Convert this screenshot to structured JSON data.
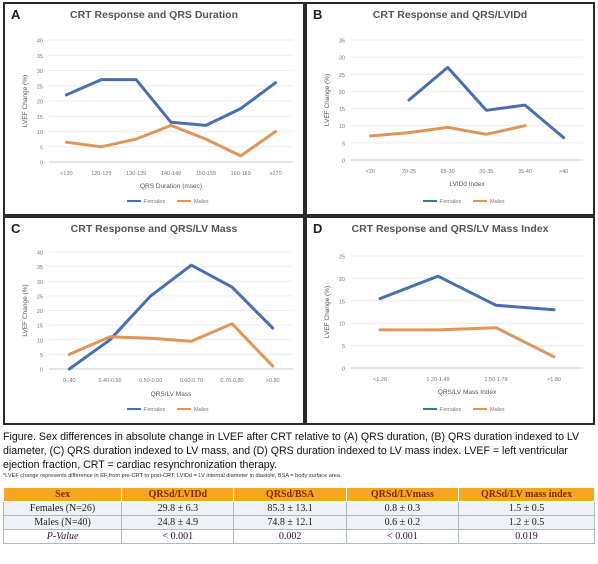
{
  "chart_data": [
    {
      "panel": "A",
      "type": "line",
      "title": "CRT Response and QRS Duration",
      "xlabel": "QRS Duration (msec)",
      "ylabel": "LVEF Change (%)",
      "ylim": [
        0,
        40
      ],
      "yticks": [
        0,
        5,
        10,
        15,
        20,
        25,
        30,
        35,
        40
      ],
      "categories": [
        "<120",
        "120-129",
        "130-139",
        "140-149",
        "150-159",
        "160-169",
        "≥170"
      ],
      "series": [
        {
          "name": "Females",
          "values": [
            22,
            27,
            27,
            13,
            12,
            17.5,
            26
          ]
        },
        {
          "name": "Males",
          "values": [
            6.5,
            5,
            7.5,
            12,
            7.5,
            2,
            10
          ]
        }
      ]
    },
    {
      "panel": "B",
      "type": "line",
      "title": "CRT Response and QRS/LVIDd",
      "xlabel": "LVIDd Index",
      "ylabel": "LVEF Change (%)",
      "ylim": [
        0,
        35
      ],
      "yticks": [
        0,
        5,
        10,
        15,
        20,
        25,
        30,
        35
      ],
      "categories": [
        "<20",
        "20-25",
        "25-30",
        "30-35",
        "35-40",
        ">40"
      ],
      "series": [
        {
          "name": "Females",
          "values": [
            null,
            17.5,
            27,
            14.5,
            16,
            6.5
          ]
        },
        {
          "name": "Males",
          "values": [
            7,
            8,
            9.5,
            7.5,
            10,
            null
          ]
        }
      ]
    },
    {
      "panel": "C",
      "type": "line",
      "title": "CRT Response and QRS/LV Mass",
      "xlabel": "QRS/LV Mass",
      "ylabel": "LVEF Change (%)",
      "ylim": [
        0,
        40
      ],
      "yticks": [
        0,
        5,
        10,
        15,
        20,
        25,
        30,
        35,
        40
      ],
      "categories": [
        "0-.40",
        "0.40-0.50",
        "0.50-0.60",
        "0.60-0.70",
        "0.70-0.80",
        ">0.80"
      ],
      "series": [
        {
          "name": "Females",
          "values": [
            0,
            10,
            25,
            35.5,
            28,
            14
          ]
        },
        {
          "name": "Males",
          "values": [
            5,
            11,
            10.5,
            9.5,
            15.5,
            1
          ]
        }
      ]
    },
    {
      "panel": "D",
      "type": "line",
      "title": "CRT Response and QRS/LV Mass Index",
      "xlabel": "QRS/LV Mass Index",
      "ylabel": "LVEF Change (%)",
      "ylim": [
        0,
        25
      ],
      "yticks": [
        0,
        5,
        10,
        15,
        20,
        25
      ],
      "categories": [
        "<1.20",
        "1.20-1.49",
        "1.50-1.79",
        ">1.80"
      ],
      "series": [
        {
          "name": "Females",
          "values": [
            15.5,
            20.5,
            14,
            13
          ]
        },
        {
          "name": "Males",
          "values": [
            8.5,
            8.5,
            9,
            2.5
          ]
        }
      ]
    }
  ],
  "legend": {
    "females": "Females",
    "males": "Males"
  },
  "colors": {
    "females": "#4a6fb0",
    "males": "#e0965a",
    "panel_border": "#2a2a2a",
    "table_header_bg": "#f5a623",
    "table_header_text": "#7a2d00"
  },
  "caption": "Figure. Sex differences in absolute change in LVEF after CRT relative to (A) QRS duration, (B) QRS duration indexed to LV  diameter, (C) QRS duration indexed to LV mass, and (D) QRS duration indexed to LV mass index. LVEF = left ventricular ejection fraction, CRT = cardiac resynchronization therapy.",
  "footnote": "*LVEF change represents difference in EF from pre-CRT to post-CRT. LVIDd = LV internal diameter in diastole, BSA = body surface area.",
  "table": {
    "headers": [
      "Sex",
      "QRSd/LVIDd",
      "QRSd/BSA",
      "QRSd/LVmass",
      "QRSd/LV mass index"
    ],
    "rows": [
      [
        "Females (N=26)",
        "29.8 ± 6.3",
        "85.3 ± 13.1",
        "0.8 ± 0.3",
        "1.5 ± 0.5"
      ],
      [
        "Males (N=40)",
        "24.8 ± 4.9",
        "74.8 ± 12.1",
        "0.6 ± 0.2",
        "1.2 ± 0.5"
      ],
      [
        "P-Value",
        "< 0.001",
        "0.002",
        "< 0.001",
        "0.019"
      ]
    ]
  }
}
